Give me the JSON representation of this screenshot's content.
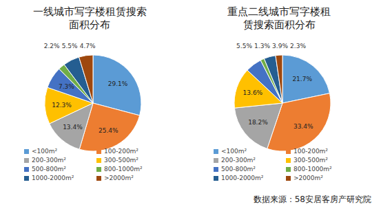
{
  "source": "数据来源：58安居客房产研究院",
  "chart_data": [
    {
      "type": "pie",
      "title": "一线城市写字楼租赁搜索面积分布",
      "categories": [
        "<100m²",
        "100-200m²",
        "200-300m²",
        "300-500m²",
        "500-800m²",
        "800-1000m²",
        "1000-2000m²",
        ">2000m²"
      ],
      "values": [
        29.1,
        25.4,
        13.4,
        12.3,
        7.3,
        2.2,
        5.5,
        4.7
      ],
      "value_labels": [
        "29.1%",
        "25.4%",
        "13.4%",
        "12.3%",
        "7.3%",
        "2.2%",
        "5.5%",
        "4.7%"
      ],
      "colors": [
        "#5b9bd5",
        "#ed7d31",
        "#a5a5a5",
        "#ffc000",
        "#4472c4",
        "#70ad47",
        "#255e91",
        "#9e480e"
      ],
      "data_labels": true,
      "legend": "bottom"
    },
    {
      "type": "pie",
      "title": "重点二线城市写字楼租赁搜索面积分布",
      "categories": [
        "<100m²",
        "100-200m²",
        "200-300m²",
        "300-500m²",
        "500-800m²",
        "800-1000m²",
        "1000-2000m²",
        ">2000m²"
      ],
      "values": [
        21.7,
        33.4,
        18.2,
        13.6,
        5.5,
        1.3,
        3.9,
        2.3
      ],
      "value_labels": [
        "21.7%",
        "33.4%",
        "18.2%",
        "13.6%",
        "5.5%",
        "1.3%",
        "3.9%",
        "2.3%"
      ],
      "colors": [
        "#5b9bd5",
        "#ed7d31",
        "#a5a5a5",
        "#ffc000",
        "#4472c4",
        "#70ad47",
        "#255e91",
        "#9e480e"
      ],
      "data_labels": true,
      "legend": "bottom"
    }
  ]
}
